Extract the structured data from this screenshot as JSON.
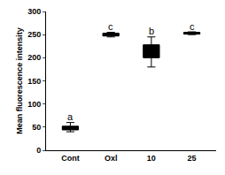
{
  "chart_data": {
    "type": "box",
    "y_label": "Mean fluorescence intensity",
    "categories": [
      "Cont",
      "Oxl",
      "10",
      "25"
    ],
    "lowerfence": [
      40,
      245,
      180,
      250
    ],
    "q1": [
      44,
      247,
      200,
      251
    ],
    "median": [
      48,
      250,
      215,
      253
    ],
    "q3": [
      52,
      253,
      228,
      255
    ],
    "upperfence": [
      60,
      255,
      245,
      256
    ],
    "color": "#000000",
    "ylim": [
      0,
      300
    ],
    "yticks": [
      0,
      50,
      100,
      150,
      200,
      250,
      300
    ],
    "grid": false,
    "annotations": [
      {
        "category": "Cont",
        "y": 72,
        "text": "a"
      },
      {
        "category": "Oxl",
        "y": 268,
        "text": "c"
      },
      {
        "category": "10",
        "y": 258,
        "text": "b"
      },
      {
        "category": "25",
        "y": 268,
        "text": "c"
      }
    ]
  }
}
